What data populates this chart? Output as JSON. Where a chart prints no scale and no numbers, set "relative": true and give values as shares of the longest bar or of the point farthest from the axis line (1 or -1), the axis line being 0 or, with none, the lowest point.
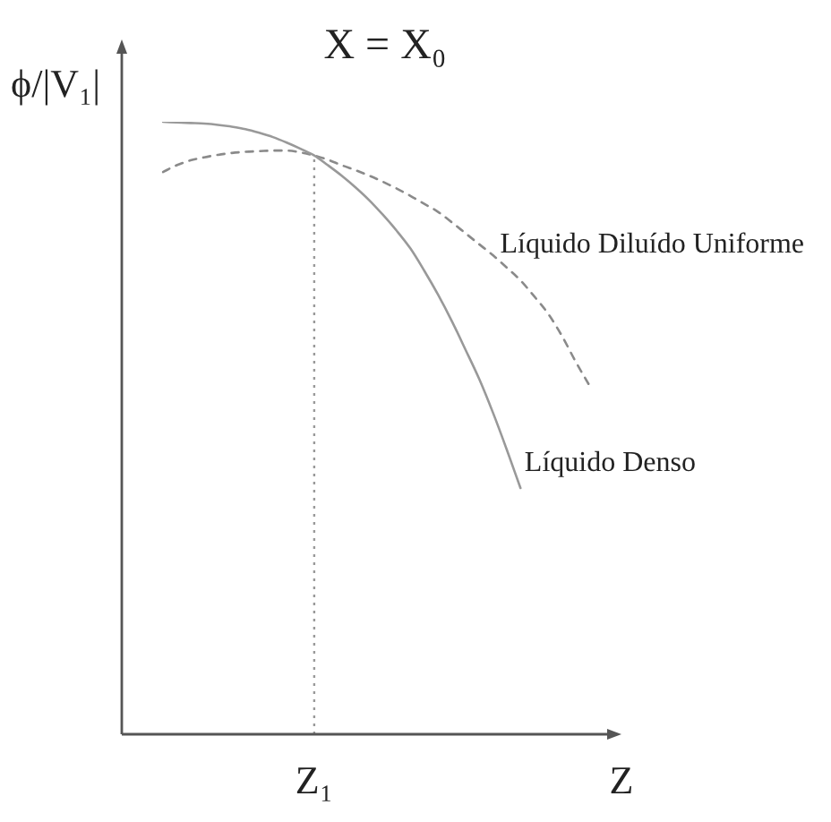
{
  "chart_data": {
    "type": "line",
    "title": "X = X₀",
    "xlabel": "Z",
    "ylabel": "ϕ/|V₁|",
    "relative": true,
    "marker": "none",
    "categories": [
      null,
      null,
      null,
      null,
      null,
      null,
      null,
      null,
      null,
      null,
      null,
      null,
      null,
      null,
      null,
      null,
      null,
      null,
      null,
      null,
      null,
      null,
      null,
      null,
      null,
      null,
      null,
      null,
      null,
      null,
      null,
      null
    ],
    "series": [
      {
        "name": "Líquido Denso",
        "color": "#999999",
        "line_style": "solid",
        "values": [
          1,
          0.999,
          0.998,
          0.997,
          0.995,
          0.992,
          0.988,
          0.982,
          0.975,
          0.966,
          0.956,
          0.945,
          0.929,
          0.912,
          0.893,
          0.872,
          0.848,
          0.822,
          0.793,
          0.757,
          0.718,
          0.675,
          0.628,
          0.58,
          0.525,
          0.465,
          0.402,
          null,
          null,
          null,
          null,
          null
        ]
      },
      {
        "name": "Líquido Diluído Uniforme",
        "color": "#8a8a8a",
        "line_style": "dashed",
        "values": [
          0.918,
          0.929,
          0.937,
          0.942,
          0.946,
          0.949,
          0.951,
          0.952,
          0.953,
          0.953,
          0.95,
          0.945,
          0.938,
          0.929,
          0.921,
          0.912,
          0.902,
          0.891,
          0.879,
          0.866,
          0.853,
          0.836,
          0.818,
          0.8,
          0.782,
          0.762,
          0.741,
          0.715,
          0.687,
          0.651,
          0.609,
          0.57
        ]
      }
    ],
    "annotations": [
      "Z₁"
    ]
  }
}
